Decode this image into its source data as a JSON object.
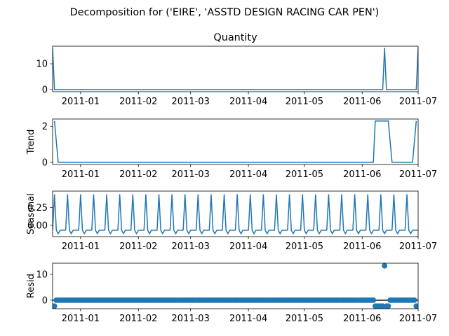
{
  "figure": {
    "suptitle": "Decomposition for ('EIRE', 'ASSTD DESIGN RACING CAR PEN')"
  },
  "colors": {
    "series": "#1f77b4",
    "axis": "#000000",
    "background": "#ffffff"
  },
  "x_axis": {
    "domain": [
      "2010-12-17",
      "2011-07-01"
    ],
    "ticks": [
      {
        "date": "2011-01-01",
        "label": "2011-01"
      },
      {
        "date": "2011-02-01",
        "label": "2011-02"
      },
      {
        "date": "2011-03-01",
        "label": "2011-03"
      },
      {
        "date": "2011-04-01",
        "label": "2011-04"
      },
      {
        "date": "2011-05-01",
        "label": "2011-05"
      },
      {
        "date": "2011-06-01",
        "label": "2011-06"
      },
      {
        "date": "2011-07-01",
        "label": "2011-07"
      }
    ]
  },
  "chart_data": [
    {
      "type": "line",
      "title": "Quantity",
      "ylabel": "",
      "ylim": [
        -0.8,
        16.8
      ],
      "yticks": [
        0,
        10
      ],
      "points": [
        [
          "2010-12-17",
          16
        ],
        [
          "2010-12-18",
          0
        ],
        [
          "2011-06-12",
          0
        ],
        [
          "2011-06-13",
          16
        ],
        [
          "2011-06-14",
          0
        ],
        [
          "2011-06-30",
          0
        ],
        [
          "2011-07-01",
          16
        ]
      ]
    },
    {
      "type": "line",
      "title": "",
      "ylabel": "Trend",
      "ylim": [
        -0.12,
        2.4
      ],
      "yticks": [
        0,
        2
      ],
      "points": [
        [
          "2010-12-18",
          2.29
        ],
        [
          "2010-12-20",
          0
        ],
        [
          "2011-06-07",
          0
        ],
        [
          "2011-06-08",
          2.29
        ],
        [
          "2011-06-15",
          2.29
        ],
        [
          "2011-06-17",
          0
        ],
        [
          "2011-06-28",
          0
        ],
        [
          "2011-06-30",
          2.29
        ]
      ]
    },
    {
      "type": "line",
      "title": "",
      "ylabel": "Seasonal",
      "ylim": [
        -0.16,
        0.48
      ],
      "yticks": [
        0,
        0.25
      ],
      "ytick_labels": [
        "0.00",
        "0.25"
      ],
      "period_days": 7,
      "pattern_start": "2010-12-17",
      "pattern": [
        -0.07,
        0.43,
        -0.07,
        -0.12,
        -0.07,
        -0.07,
        -0.07
      ]
    },
    {
      "type": "scatter",
      "title": "",
      "ylabel": "Resid",
      "ylim": [
        -3.3,
        14.3
      ],
      "yticks": [
        0,
        10
      ],
      "zero_line": true,
      "point_rule": "one point per day from 2010-12-18 to 2011-06-30; value 0 unless listed",
      "start": "2010-12-18",
      "end": "2011-06-30",
      "nonzero": [
        [
          "2010-12-18",
          -2.3
        ],
        [
          "2011-06-08",
          -2.3
        ],
        [
          "2011-06-09",
          -2.3
        ],
        [
          "2011-06-10",
          -2.3
        ],
        [
          "2011-06-11",
          -2.3
        ],
        [
          "2011-06-12",
          -2.3
        ],
        [
          "2011-06-13",
          13.3
        ],
        [
          "2011-06-14",
          -2.3
        ],
        [
          "2011-06-15",
          -2.3
        ],
        [
          "2011-06-30",
          -2.3
        ]
      ]
    }
  ]
}
